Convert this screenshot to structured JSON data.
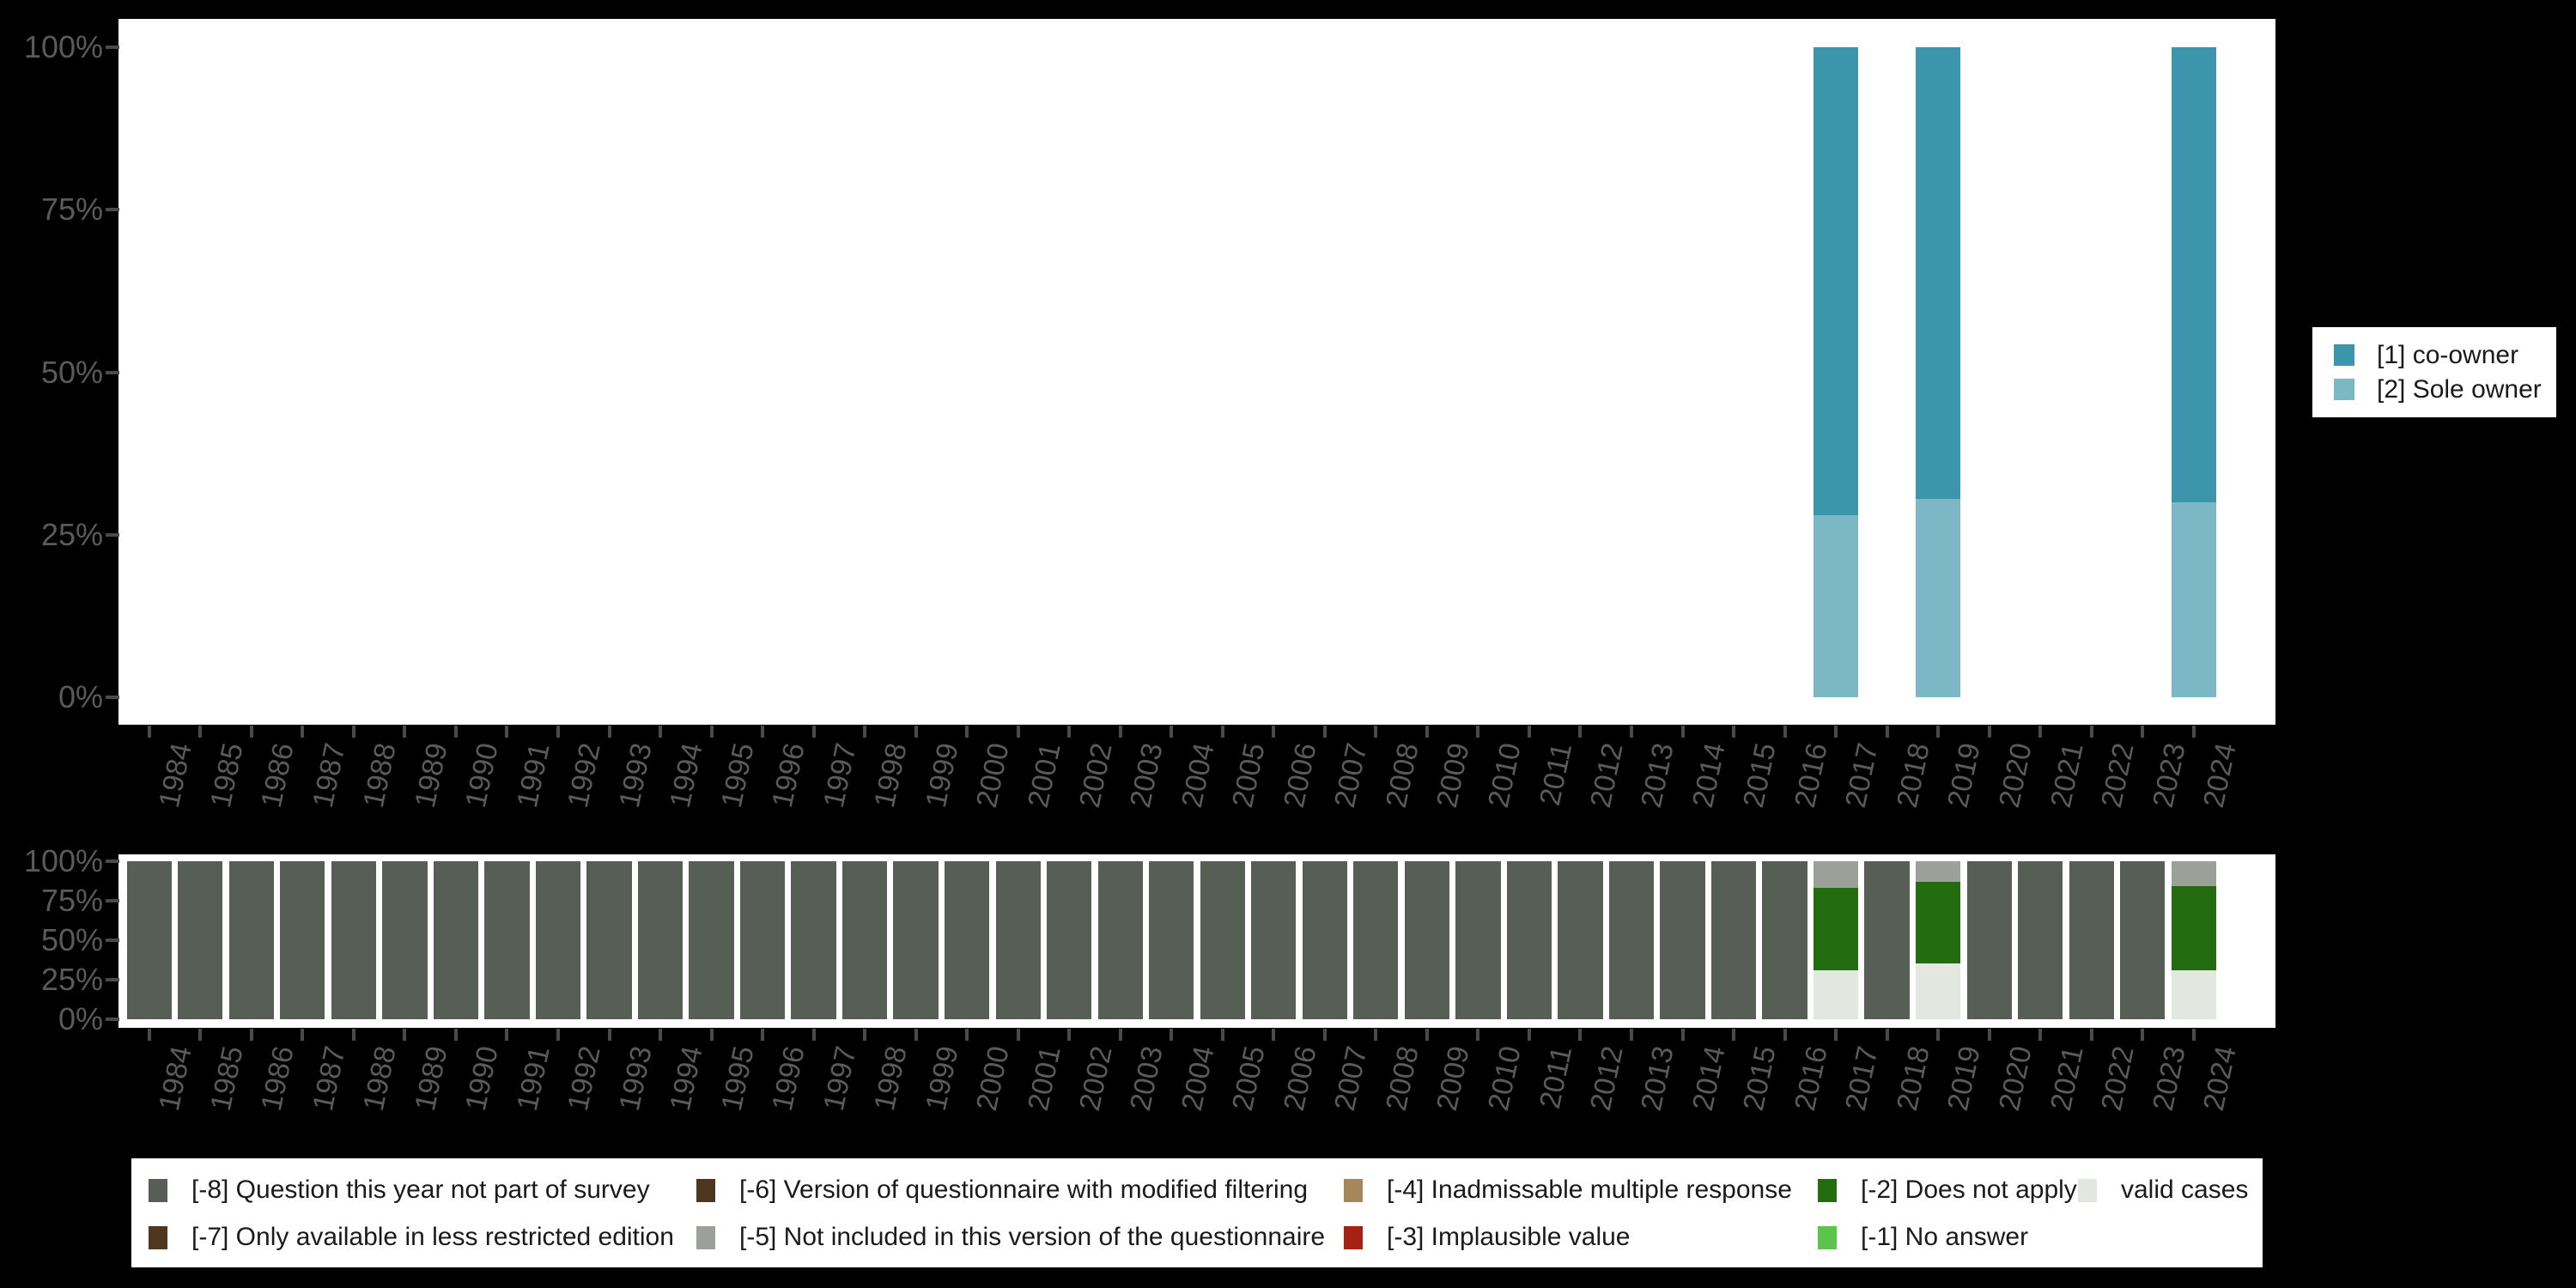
{
  "years": [
    "1984",
    "1985",
    "1986",
    "1987",
    "1988",
    "1989",
    "1990",
    "1991",
    "1992",
    "1993",
    "1994",
    "1995",
    "1996",
    "1997",
    "1998",
    "1999",
    "2000",
    "2001",
    "2002",
    "2003",
    "2004",
    "2005",
    "2006",
    "2007",
    "2008",
    "2009",
    "2010",
    "2011",
    "2012",
    "2013",
    "2014",
    "2015",
    "2016",
    "2017",
    "2018",
    "2019",
    "2020",
    "2021",
    "2022",
    "2023",
    "2024"
  ],
  "y_axis": {
    "tick_labels_top_to_bottom": [
      "100%",
      "75%",
      "50%",
      "25%",
      "0%"
    ]
  },
  "colors": {
    "co_owner": "#3B96AC",
    "sole_owner": "#7CB7C5",
    "m8_not_part_of_survey": "#575E56",
    "m7_less_restricted": "#4F361E",
    "m6_modified_filtering": "#4F361E",
    "m5_not_in_version": "#9BA198",
    "m4_inadmissable": "#A6875C",
    "m3_implausible": "#A82012",
    "m2_does_not_apply": "#236D10",
    "m1_no_answer": "#5CC44D",
    "valid_cases": "#E2E7E0",
    "axis_text": "#5A5A5A",
    "background": "#000000",
    "panel": "#FFFFFF"
  },
  "chart_data": [
    {
      "type": "bar",
      "stacked": true,
      "title": "",
      "xlabel": "",
      "ylabel": "",
      "ylim": [
        0,
        100
      ],
      "grid": false,
      "legend_position": "right",
      "yticks": [
        "0%",
        "25%",
        "50%",
        "75%",
        "100%"
      ],
      "categories": [
        "1984",
        "1985",
        "1986",
        "1987",
        "1988",
        "1989",
        "1990",
        "1991",
        "1992",
        "1993",
        "1994",
        "1995",
        "1996",
        "1997",
        "1998",
        "1999",
        "2000",
        "2001",
        "2002",
        "2003",
        "2004",
        "2005",
        "2006",
        "2007",
        "2008",
        "2009",
        "2010",
        "2011",
        "2012",
        "2013",
        "2014",
        "2015",
        "2016",
        "2017",
        "2018",
        "2019",
        "2020",
        "2021",
        "2022",
        "2023",
        "2024"
      ],
      "series": [
        {
          "name": "[1] co-owner",
          "color": "#3B96AC",
          "values": [
            null,
            null,
            null,
            null,
            null,
            null,
            null,
            null,
            null,
            null,
            null,
            null,
            null,
            null,
            null,
            null,
            null,
            null,
            null,
            null,
            null,
            null,
            null,
            null,
            null,
            null,
            null,
            null,
            null,
            null,
            null,
            null,
            null,
            72,
            null,
            69.5,
            null,
            null,
            null,
            null,
            70
          ]
        },
        {
          "name": "[2] Sole owner",
          "color": "#7CB7C5",
          "values": [
            null,
            null,
            null,
            null,
            null,
            null,
            null,
            null,
            null,
            null,
            null,
            null,
            null,
            null,
            null,
            null,
            null,
            null,
            null,
            null,
            null,
            null,
            null,
            null,
            null,
            null,
            null,
            null,
            null,
            null,
            null,
            null,
            null,
            28,
            null,
            30.5,
            null,
            null,
            null,
            null,
            30
          ]
        }
      ]
    },
    {
      "type": "bar",
      "stacked": true,
      "title": "",
      "xlabel": "",
      "ylabel": "",
      "ylim": [
        0,
        100
      ],
      "grid": false,
      "legend_position": "bottom",
      "yticks": [
        "0%",
        "25%",
        "50%",
        "75%",
        "100%"
      ],
      "categories": [
        "1984",
        "1985",
        "1986",
        "1987",
        "1988",
        "1989",
        "1990",
        "1991",
        "1992",
        "1993",
        "1994",
        "1995",
        "1996",
        "1997",
        "1998",
        "1999",
        "2000",
        "2001",
        "2002",
        "2003",
        "2004",
        "2005",
        "2006",
        "2007",
        "2008",
        "2009",
        "2010",
        "2011",
        "2012",
        "2013",
        "2014",
        "2015",
        "2016",
        "2017",
        "2018",
        "2019",
        "2020",
        "2021",
        "2022",
        "2023",
        "2024"
      ],
      "series": [
        {
          "name": "[-8] Question this year not part of survey",
          "color": "#575E56",
          "values": [
            100,
            100,
            100,
            100,
            100,
            100,
            100,
            100,
            100,
            100,
            100,
            100,
            100,
            100,
            100,
            100,
            100,
            100,
            100,
            100,
            100,
            100,
            100,
            100,
            100,
            100,
            100,
            100,
            100,
            100,
            100,
            100,
            100,
            null,
            100,
            null,
            100,
            100,
            100,
            100,
            null
          ]
        },
        {
          "name": "[-5] Not included in this version of the questionnaire",
          "color": "#9BA198",
          "values": [
            null,
            null,
            null,
            null,
            null,
            null,
            null,
            null,
            null,
            null,
            null,
            null,
            null,
            null,
            null,
            null,
            null,
            null,
            null,
            null,
            null,
            null,
            null,
            null,
            null,
            null,
            null,
            null,
            null,
            null,
            null,
            null,
            null,
            17,
            null,
            13,
            null,
            null,
            null,
            null,
            16
          ]
        },
        {
          "name": "[-2] Does not apply",
          "color": "#236D10",
          "values": [
            null,
            null,
            null,
            null,
            null,
            null,
            null,
            null,
            null,
            null,
            null,
            null,
            null,
            null,
            null,
            null,
            null,
            null,
            null,
            null,
            null,
            null,
            null,
            null,
            null,
            null,
            null,
            null,
            null,
            null,
            null,
            null,
            null,
            52,
            null,
            51.5,
            null,
            null,
            null,
            null,
            53
          ]
        },
        {
          "name": "valid cases",
          "color": "#E2E7E0",
          "values": [
            null,
            null,
            null,
            null,
            null,
            null,
            null,
            null,
            null,
            null,
            null,
            null,
            null,
            null,
            null,
            null,
            null,
            null,
            null,
            null,
            null,
            null,
            null,
            null,
            null,
            null,
            null,
            null,
            null,
            null,
            null,
            null,
            null,
            31,
            null,
            35.5,
            null,
            null,
            null,
            null,
            31
          ]
        }
      ]
    }
  ],
  "right_legend": {
    "items": [
      {
        "label": "[1] co-owner",
        "color": "#3B96AC"
      },
      {
        "label": "[2] Sole owner",
        "color": "#7CB7C5"
      }
    ]
  },
  "bottom_legend": {
    "items": [
      {
        "label": "[-8] Question this year not part of survey",
        "color": "#575E56",
        "col": 0,
        "row": 0
      },
      {
        "label": "[-7] Only available in less restricted edition",
        "color": "#4F361E",
        "col": 0,
        "row": 1
      },
      {
        "label": "[-6] Version of questionnaire with modified filtering",
        "color": "#4F361E",
        "col": 1,
        "row": 0
      },
      {
        "label": "[-5] Not included in this version of the questionnaire",
        "color": "#9BA198",
        "col": 1,
        "row": 1
      },
      {
        "label": "[-4] Inadmissable multiple response",
        "color": "#A6875C",
        "col": 2,
        "row": 0
      },
      {
        "label": "[-3] Implausible value",
        "color": "#A82012",
        "col": 2,
        "row": 1
      },
      {
        "label": "[-2] Does not apply",
        "color": "#236D10",
        "col": 3,
        "row": 0
      },
      {
        "label": "[-1] No answer",
        "color": "#5CC44D",
        "col": 3,
        "row": 1
      },
      {
        "label": "valid cases",
        "color": "#E2E7E0",
        "col": 4,
        "row": 0
      }
    ]
  }
}
